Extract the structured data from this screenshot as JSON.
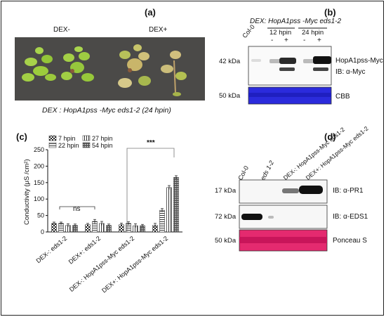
{
  "panels": {
    "a": {
      "label": "(a)",
      "dex_minus": "DEX-",
      "dex_plus": "DEX+",
      "caption": "DEX : HopA1pss -Myc eds1-2 (24 hpin)"
    },
    "b": {
      "label": "(b)",
      "title": "DEX: HopA1pss -Myc eds1-2",
      "lanes": [
        "Col-0",
        "12 hpin",
        "24 hpin"
      ],
      "signs": [
        "-",
        "+",
        "-",
        "+"
      ],
      "mw_top": "42 kDa",
      "mw_bottom": "50 kDa",
      "band_label": "HopA1pss-Myc",
      "ib_label": "IB: α-Myc",
      "stain_label": "CBB"
    },
    "c": {
      "label": "(c)",
      "ylabel": "Conductivity (μS /cm²)",
      "significance": [
        "ns",
        "***"
      ]
    },
    "d": {
      "label": "(d)",
      "lanes": [
        "Col-0",
        "eds 1-2",
        "DEX-: HopA1pss-Myc eds1-2",
        "DEX+: HopA1pss-Myc eds1-2"
      ],
      "mw": [
        "17 kDa",
        "72 kDa",
        "50 kDa"
      ],
      "blots": [
        "IB: α-PR1",
        "IB: α-EDS1",
        "Ponceau S"
      ]
    }
  },
  "chart_data": {
    "type": "bar",
    "categories": [
      "DEX-: eds1-2",
      "DEX+: eds1-2",
      "DEX-: HopA1pss-Myc eds1-2",
      "DEX+: HopA1pss-Myc eds1-2"
    ],
    "series": [
      {
        "name": "7 hpin",
        "values": [
          26,
          22,
          22,
          20
        ],
        "errors": [
          4,
          4,
          5,
          6
        ]
      },
      {
        "name": "22 hpin",
        "values": [
          26,
          32,
          26,
          66
        ],
        "errors": [
          4,
          6,
          5,
          5
        ]
      },
      {
        "name": "27 hpin",
        "values": [
          20,
          26,
          19,
          135
        ],
        "errors": [
          5,
          6,
          6,
          6
        ]
      },
      {
        "name": "54 hpin",
        "values": [
          20,
          20,
          19,
          166
        ],
        "errors": [
          4,
          4,
          4,
          5
        ]
      }
    ],
    "ylim": [
      0,
      250
    ],
    "yticks": [
      0,
      50,
      100,
      150,
      200,
      250
    ],
    "legend": "top-left",
    "grid": false
  }
}
